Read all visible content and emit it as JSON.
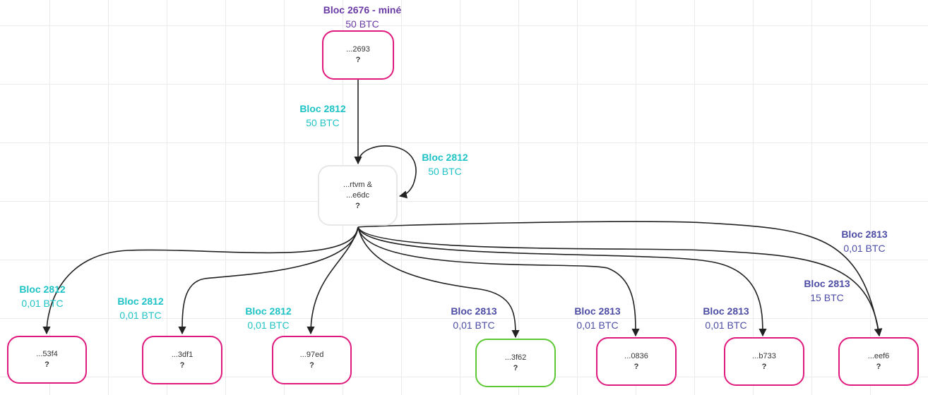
{
  "colors": {
    "grid": "#ebebeb",
    "node_border_pink": "#e0197d",
    "node_border_white": "#e7e7e7",
    "node_border_green": "#5dc833",
    "arrow": "#222222",
    "label_purple": "#6a3ba5",
    "label_cyan": "#1fc3c6",
    "label_navy": "#4d4da6"
  },
  "nodes": {
    "source": {
      "address": "...2693",
      "owner": "?"
    },
    "middle": {
      "address_line1": "...rtvm &",
      "address_line2": "...e6dc",
      "owner": "?"
    },
    "out_53f4": {
      "address": "...53f4",
      "owner": "?"
    },
    "out_3df1": {
      "address": "...3df1",
      "owner": "?"
    },
    "out_97ed": {
      "address": "...97ed",
      "owner": "?"
    },
    "out_3f62": {
      "address": "...3f62",
      "owner": "?"
    },
    "out_0836": {
      "address": "...0836",
      "owner": "?"
    },
    "out_b733": {
      "address": "...b733",
      "owner": "?"
    },
    "out_eef6": {
      "address": "...eef6",
      "owner": "?"
    }
  },
  "labels": {
    "mined": {
      "title": "Bloc 2676 - miné",
      "value": "50 BTC"
    },
    "to_middle": {
      "title": "Bloc 2812",
      "value": "50 BTC"
    },
    "self_loop": {
      "title": "Bloc 2812",
      "value": "50 BTC"
    },
    "to_53f4": {
      "title": "Bloc 2812",
      "value": "0,01 BTC"
    },
    "to_3df1": {
      "title": "Bloc 2812",
      "value": "0,01 BTC"
    },
    "to_97ed": {
      "title": "Bloc 2812",
      "value": "0,01 BTC"
    },
    "to_3f62": {
      "title": "Bloc 2813",
      "value": "0,01 BTC"
    },
    "to_0836": {
      "title": "Bloc 2813",
      "value": "0,01 BTC"
    },
    "to_b733": {
      "title": "Bloc 2813",
      "value": "0,01 BTC"
    },
    "to_eef6_a": {
      "title": "Bloc 2813",
      "value": "0,01 BTC"
    },
    "to_eef6_b": {
      "title": "Bloc 2813",
      "value": "15 BTC"
    }
  }
}
